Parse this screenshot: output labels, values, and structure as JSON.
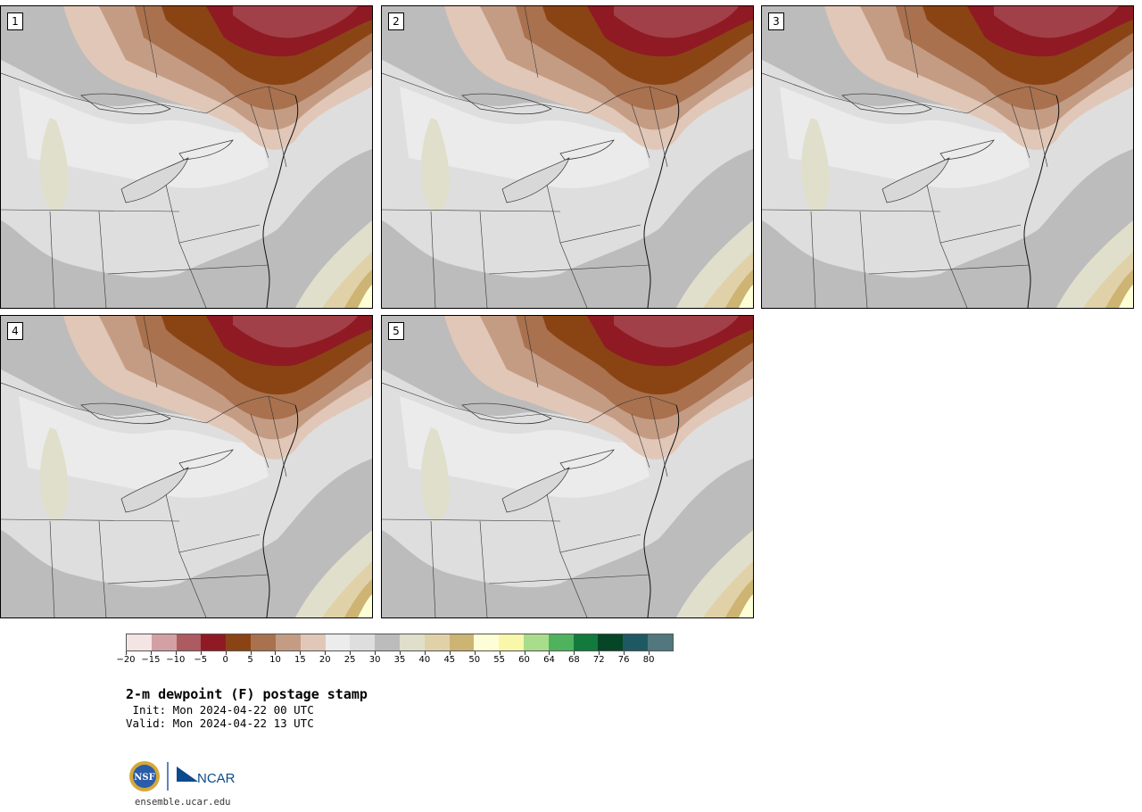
{
  "members": [
    {
      "label": "1"
    },
    {
      "label": "2"
    },
    {
      "label": "3"
    },
    {
      "label": "4"
    },
    {
      "label": "5"
    }
  ],
  "colorbar": {
    "colors": [
      "#f4e4e4",
      "#d3a0a4",
      "#ad5a61",
      "#8f1a24",
      "#8a4414",
      "#a9714e",
      "#c49c84",
      "#e1c7b7",
      "#ececec",
      "#dedede",
      "#bcbcbc",
      "#e0dfcb",
      "#e0d1a9",
      "#cdb472",
      "#fefed6",
      "#f8f7aa",
      "#a9dd8b",
      "#4fb35e",
      "#127a3c",
      "#054626",
      "#1e5963",
      "#50787e"
    ],
    "tick_labels": [
      "−20",
      "−15",
      "−10",
      "−5",
      "0",
      "5",
      "10",
      "15",
      "20",
      "25",
      "30",
      "35",
      "40",
      "45",
      "50",
      "55",
      "60",
      "64",
      "68",
      "72",
      "76",
      "80"
    ]
  },
  "title": "2-m dewpoint (F) postage stamp",
  "init": " Init: Mon 2024-04-22 00 UTC",
  "valid": "Valid: Mon 2024-04-22 13 UTC",
  "logo": {
    "nsf": "NSF",
    "ncar": "NCAR"
  },
  "footer_url": "ensemble.ucar.edu"
}
